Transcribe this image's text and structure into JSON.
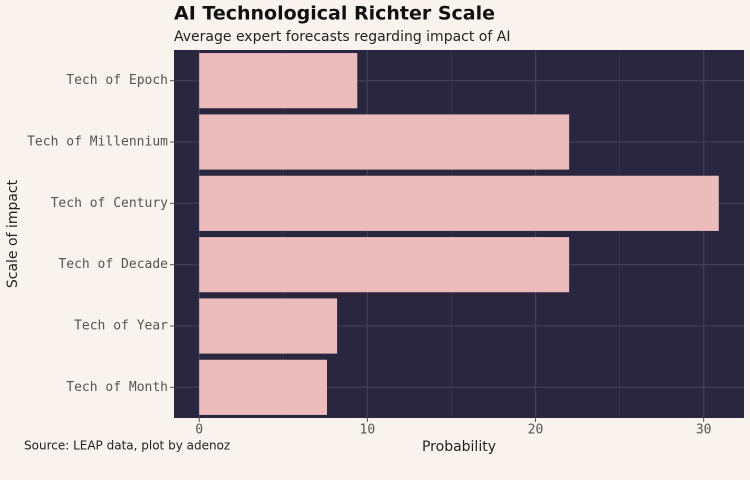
{
  "chart_data": {
    "type": "bar",
    "orientation": "horizontal",
    "title": "AI Technological Richter Scale",
    "subtitle": "Average expert forecasts regarding impact of AI",
    "caption": "Source: LEAP data, plot by adenoz",
    "x_label": "Probability",
    "y_label": "Scale of impact",
    "categories": [
      "Tech of Epoch",
      "Tech of Millennium",
      "Tech of Century",
      "Tech of Decade",
      "Tech of Year",
      "Tech of Month"
    ],
    "values": [
      9.4,
      22.0,
      30.9,
      22.0,
      8.2,
      7.6
    ],
    "color": "#ebbcbb",
    "panel_color": "#2a2640",
    "xlim": [
      -1.5,
      32.4
    ],
    "xticks": [
      0,
      10,
      20,
      30
    ],
    "xminorticks": [
      5,
      15,
      25
    ],
    "grid": true
  }
}
